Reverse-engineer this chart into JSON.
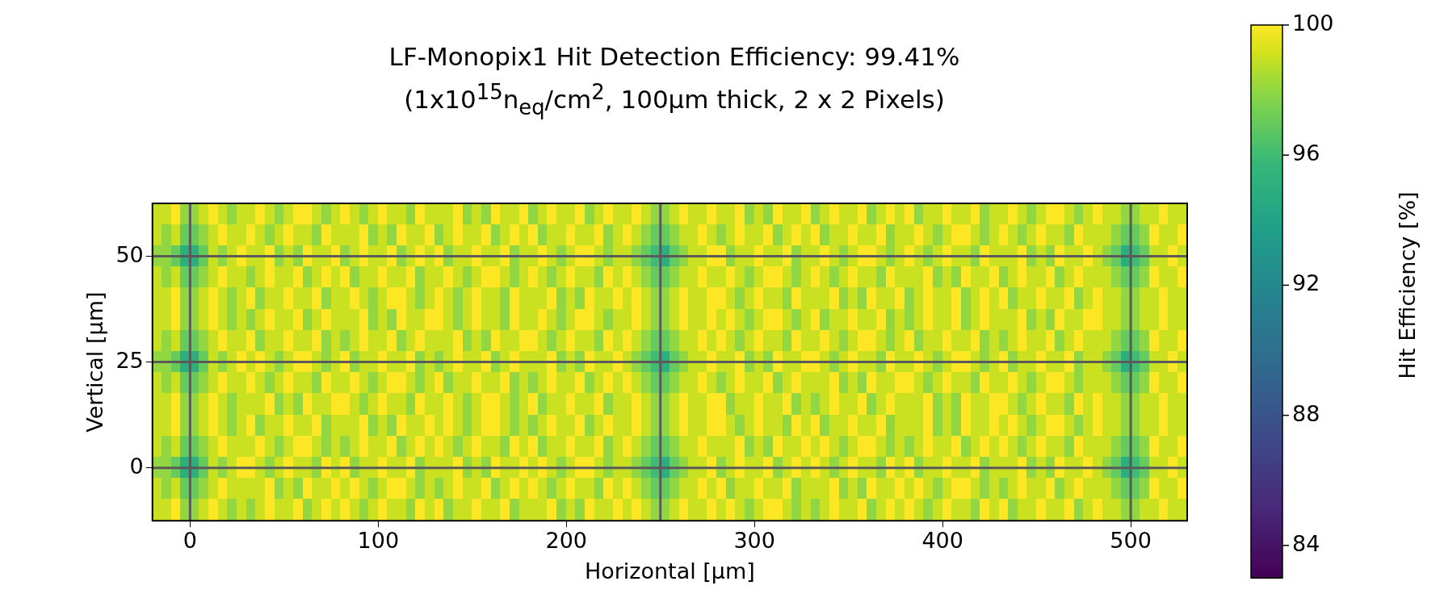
{
  "chart_data": {
    "type": "heatmap",
    "title": "LF-Monopix1 Hit Detection Efficiency: 99.41%",
    "subtitle": "(1x10$^{15}$n$_{eq}$/cm$^{2}$, 100μm thick, 2 x 2 Pixels)",
    "xlabel": "Horizontal [μm]",
    "ylabel": "Vertical [μm]",
    "clabel": "Hit Efficiency [%]",
    "xlim": [
      -20,
      530
    ],
    "xticks": [
      0,
      100,
      200,
      300,
      400,
      500
    ],
    "ylim": [
      -12.5,
      62.5
    ],
    "yticks": [
      0,
      25,
      50
    ],
    "clim": [
      83,
      100
    ],
    "cticks": [
      84,
      88,
      92,
      96,
      100
    ],
    "ref_lines": [
      {
        "axis": "x",
        "value": 0,
        "color": "#5a5a5a"
      },
      {
        "axis": "x",
        "value": 250,
        "color": "#5a5a5a"
      },
      {
        "axis": "x",
        "value": 500,
        "color": "#5a5a5a"
      },
      {
        "axis": "y",
        "value": 0,
        "color": "#5a5a5a"
      },
      {
        "axis": "y",
        "value": 25,
        "color": "#5a5a5a"
      },
      {
        "axis": "y",
        "value": 50,
        "color": "#5a5a5a"
      }
    ],
    "x": [
      -17.5,
      -12.5,
      -7.5,
      -2.5,
      2.5,
      7.5,
      12.5,
      17.5,
      22.5,
      27.5,
      32.5,
      37.5,
      42.5,
      47.5,
      52.5,
      57.5,
      62.5,
      67.5,
      72.5,
      77.5,
      82.5,
      87.5,
      92.5,
      97.5,
      102.5,
      107.5,
      112.5,
      117.5,
      122.5,
      127.5,
      132.5,
      137.5,
      142.5,
      147.5,
      152.5,
      157.5,
      162.5,
      167.5,
      172.5,
      177.5,
      182.5,
      187.5,
      192.5,
      197.5,
      202.5,
      207.5,
      212.5,
      217.5,
      222.5,
      227.5,
      232.5,
      237.5,
      242.5,
      247.5,
      252.5,
      257.5,
      262.5,
      267.5,
      272.5,
      277.5,
      282.5,
      287.5,
      292.5,
      297.5,
      302.5,
      307.5,
      312.5,
      317.5,
      322.5,
      327.5,
      332.5,
      337.5,
      342.5,
      347.5,
      352.5,
      357.5,
      362.5,
      367.5,
      372.5,
      377.5,
      382.5,
      387.5,
      392.5,
      397.5,
      402.5,
      407.5,
      412.5,
      417.5,
      422.5,
      427.5,
      432.5,
      437.5,
      442.5,
      447.5,
      452.5,
      457.5,
      462.5,
      467.5,
      472.5,
      477.5,
      482.5,
      487.5,
      492.5,
      497.5,
      502.5,
      507.5,
      512.5,
      517.5,
      522.5,
      527.5
    ],
    "y": [
      60,
      55,
      50,
      45,
      40,
      35,
      30,
      25,
      20,
      15,
      10,
      5,
      0,
      -5,
      -10
    ],
    "cells": [
      [
        99,
        99,
        100,
        98,
        98,
        99,
        100,
        99,
        98,
        99,
        99,
        100,
        99,
        98,
        99,
        100,
        100,
        99,
        98,
        99,
        100,
        99,
        98,
        99,
        100,
        99,
        99,
        98,
        100,
        99,
        99,
        99,
        100,
        98,
        99,
        98,
        100,
        99,
        99,
        100,
        98,
        99,
        100,
        99,
        99,
        100,
        98,
        99,
        100,
        99,
        99,
        100,
        99,
        98,
        98,
        99,
        100,
        99,
        99,
        100,
        99,
        99,
        100,
        98,
        99,
        98,
        100,
        99,
        99,
        100,
        98,
        99,
        100,
        99,
        99,
        100,
        98,
        99,
        100,
        99,
        100,
        98,
        99,
        99,
        100,
        99,
        99,
        100,
        98,
        99,
        99,
        100,
        99,
        98,
        99,
        100,
        100,
        99,
        98,
        99,
        100,
        99,
        99,
        98,
        98,
        99,
        99,
        100,
        99,
        99
      ],
      [
        99,
        98,
        99,
        97,
        97,
        98,
        99,
        100,
        99,
        99,
        100,
        99,
        98,
        99,
        100,
        99,
        99,
        98,
        100,
        99,
        99,
        99,
        100,
        98,
        99,
        98,
        100,
        99,
        99,
        100,
        98,
        99,
        100,
        99,
        99,
        100,
        98,
        99,
        100,
        99,
        100,
        98,
        99,
        99,
        100,
        99,
        99,
        100,
        98,
        99,
        100,
        99,
        98,
        97,
        97,
        98,
        99,
        99,
        100,
        99,
        98,
        99,
        100,
        99,
        99,
        100,
        98,
        99,
        100,
        99,
        100,
        98,
        99,
        99,
        100,
        99,
        99,
        100,
        98,
        99,
        99,
        100,
        99,
        98,
        99,
        100,
        100,
        99,
        98,
        99,
        100,
        99,
        98,
        99,
        100,
        99,
        99,
        98,
        100,
        99,
        99,
        99,
        98,
        97,
        97,
        98,
        100,
        99,
        99,
        100
      ],
      [
        98,
        98,
        97,
        95,
        95,
        97,
        99,
        98,
        99,
        100,
        99,
        99,
        100,
        98,
        99,
        98,
        100,
        99,
        99,
        100,
        98,
        99,
        100,
        99,
        99,
        100,
        98,
        99,
        100,
        99,
        100,
        98,
        99,
        99,
        100,
        99,
        99,
        100,
        98,
        99,
        99,
        100,
        99,
        98,
        99,
        100,
        100,
        99,
        98,
        99,
        99,
        98,
        97,
        96,
        95,
        97,
        98,
        99,
        99,
        100,
        100,
        98,
        99,
        99,
        100,
        99,
        99,
        100,
        98,
        99,
        99,
        100,
        99,
        98,
        99,
        100,
        100,
        99,
        98,
        99,
        100,
        99,
        98,
        99,
        100,
        99,
        99,
        98,
        100,
        99,
        99,
        99,
        100,
        98,
        99,
        98,
        100,
        99,
        99,
        100,
        99,
        98,
        97,
        95,
        96,
        97,
        99,
        99,
        100,
        99
      ],
      [
        99,
        98,
        99,
        97,
        97,
        98,
        99,
        100,
        99,
        99,
        98,
        99,
        100,
        99,
        99,
        100,
        98,
        99,
        100,
        99,
        100,
        98,
        99,
        99,
        100,
        99,
        99,
        100,
        98,
        99,
        99,
        100,
        99,
        98,
        99,
        100,
        100,
        99,
        98,
        99,
        100,
        99,
        98,
        99,
        100,
        99,
        99,
        98,
        100,
        99,
        100,
        99,
        98,
        97,
        97,
        98,
        99,
        99,
        100,
        99,
        99,
        100,
        99,
        98,
        99,
        100,
        100,
        99,
        98,
        99,
        100,
        99,
        98,
        99,
        100,
        99,
        99,
        98,
        100,
        99,
        99,
        99,
        100,
        98,
        99,
        98,
        100,
        99,
        99,
        100,
        98,
        99,
        100,
        99,
        99,
        100,
        98,
        99,
        100,
        99,
        99,
        99,
        98,
        97,
        97,
        98,
        100,
        99,
        99,
        100
      ],
      [
        99,
        99,
        100,
        98,
        98,
        99,
        100,
        99,
        98,
        99,
        100,
        98,
        99,
        99,
        100,
        99,
        99,
        100,
        98,
        99,
        99,
        100,
        99,
        98,
        99,
        100,
        100,
        99,
        98,
        99,
        100,
        99,
        98,
        99,
        100,
        99,
        99,
        98,
        100,
        99,
        99,
        99,
        100,
        98,
        99,
        98,
        100,
        99,
        99,
        100,
        99,
        100,
        99,
        98,
        98,
        99,
        100,
        99,
        99,
        100,
        100,
        99,
        98,
        99,
        100,
        99,
        99,
        98,
        100,
        99,
        99,
        99,
        100,
        98,
        99,
        98,
        100,
        99,
        99,
        100,
        98,
        99,
        100,
        99,
        99,
        100,
        98,
        99,
        100,
        99,
        100,
        98,
        99,
        99,
        100,
        99,
        99,
        100,
        98,
        99,
        100,
        99,
        99,
        98,
        98,
        99,
        99,
        100,
        99,
        99
      ],
      [
        99,
        99,
        100,
        98,
        98,
        99,
        100,
        99,
        98,
        99,
        98,
        99,
        100,
        99,
        99,
        100,
        98,
        99,
        100,
        99,
        99,
        99,
        100,
        98,
        99,
        98,
        100,
        99,
        99,
        100,
        100,
        99,
        98,
        99,
        100,
        99,
        99,
        98,
        100,
        99,
        99,
        100,
        99,
        98,
        99,
        100,
        100,
        99,
        98,
        99,
        99,
        100,
        99,
        98,
        98,
        99,
        100,
        99,
        99,
        100,
        99,
        100,
        99,
        98,
        99,
        100,
        100,
        99,
        98,
        99,
        100,
        98,
        99,
        99,
        100,
        99,
        99,
        100,
        98,
        99,
        98,
        99,
        100,
        99,
        99,
        100,
        98,
        99,
        100,
        99,
        99,
        99,
        100,
        98,
        99,
        98,
        100,
        99,
        99,
        100,
        100,
        99,
        99,
        98,
        98,
        99,
        99,
        100,
        99,
        99
      ],
      [
        99,
        98,
        99,
        97,
        97,
        98,
        99,
        100,
        99,
        99,
        100,
        98,
        99,
        99,
        100,
        99,
        99,
        100,
        98,
        99,
        98,
        99,
        100,
        99,
        99,
        100,
        98,
        99,
        100,
        99,
        99,
        99,
        100,
        98,
        99,
        98,
        100,
        99,
        99,
        100,
        100,
        99,
        98,
        99,
        100,
        99,
        99,
        98,
        100,
        99,
        100,
        99,
        98,
        97,
        97,
        98,
        99,
        99,
        100,
        99,
        100,
        99,
        98,
        99,
        100,
        99,
        99,
        98,
        100,
        99,
        99,
        100,
        99,
        98,
        99,
        100,
        100,
        99,
        98,
        99,
        100,
        98,
        99,
        99,
        100,
        99,
        99,
        100,
        98,
        99,
        98,
        99,
        100,
        99,
        99,
        100,
        98,
        99,
        100,
        99,
        99,
        99,
        98,
        97,
        97,
        98,
        100,
        99,
        99,
        100
      ],
      [
        98,
        98,
        97,
        95,
        95,
        97,
        99,
        98,
        99,
        100,
        99,
        100,
        99,
        98,
        99,
        100,
        100,
        99,
        98,
        99,
        100,
        98,
        99,
        99,
        100,
        99,
        99,
        100,
        98,
        99,
        98,
        99,
        100,
        99,
        99,
        100,
        98,
        99,
        100,
        99,
        99,
        99,
        100,
        98,
        99,
        98,
        100,
        99,
        99,
        100,
        99,
        98,
        97,
        96,
        95,
        97,
        98,
        99,
        99,
        100,
        99,
        99,
        100,
        98,
        99,
        98,
        100,
        99,
        99,
        100,
        100,
        99,
        98,
        99,
        100,
        99,
        99,
        98,
        100,
        99,
        99,
        100,
        99,
        98,
        99,
        100,
        100,
        99,
        98,
        99,
        100,
        98,
        99,
        99,
        100,
        99,
        99,
        100,
        98,
        99,
        99,
        98,
        97,
        95,
        96,
        97,
        99,
        99,
        100,
        99
      ],
      [
        99,
        98,
        99,
        97,
        97,
        98,
        99,
        100,
        99,
        99,
        100,
        99,
        98,
        99,
        100,
        99,
        99,
        98,
        100,
        99,
        99,
        100,
        99,
        98,
        99,
        100,
        100,
        99,
        98,
        99,
        100,
        98,
        99,
        99,
        100,
        99,
        99,
        100,
        98,
        99,
        98,
        99,
        100,
        99,
        99,
        100,
        98,
        99,
        100,
        99,
        100,
        99,
        98,
        97,
        97,
        98,
        99,
        99,
        100,
        99,
        98,
        99,
        100,
        99,
        99,
        100,
        98,
        99,
        100,
        99,
        99,
        99,
        100,
        98,
        99,
        98,
        100,
        99,
        99,
        100,
        100,
        99,
        98,
        99,
        100,
        99,
        99,
        98,
        100,
        99,
        99,
        100,
        99,
        98,
        99,
        100,
        100,
        99,
        98,
        99,
        99,
        99,
        98,
        97,
        97,
        98,
        100,
        99,
        99,
        100
      ],
      [
        99,
        99,
        100,
        98,
        98,
        99,
        100,
        99,
        98,
        99,
        99,
        99,
        100,
        98,
        99,
        98,
        100,
        99,
        99,
        100,
        100,
        99,
        98,
        99,
        100,
        99,
        99,
        98,
        100,
        99,
        99,
        100,
        99,
        98,
        99,
        100,
        100,
        99,
        98,
        99,
        100,
        98,
        99,
        99,
        100,
        99,
        99,
        100,
        98,
        99,
        99,
        100,
        99,
        98,
        98,
        99,
        100,
        99,
        99,
        100,
        100,
        98,
        99,
        99,
        100,
        99,
        99,
        100,
        98,
        99,
        98,
        99,
        100,
        99,
        99,
        100,
        98,
        99,
        100,
        99,
        99,
        99,
        100,
        98,
        99,
        98,
        100,
        99,
        99,
        100,
        100,
        99,
        98,
        99,
        100,
        99,
        99,
        98,
        100,
        99,
        100,
        99,
        99,
        98,
        98,
        99,
        99,
        100,
        99,
        99
      ],
      [
        99,
        99,
        100,
        98,
        98,
        99,
        100,
        99,
        98,
        99,
        100,
        98,
        99,
        99,
        100,
        99,
        99,
        100,
        98,
        99,
        99,
        99,
        100,
        98,
        99,
        98,
        100,
        99,
        99,
        100,
        99,
        100,
        99,
        98,
        99,
        100,
        100,
        99,
        98,
        99,
        98,
        99,
        100,
        99,
        99,
        100,
        98,
        99,
        100,
        99,
        99,
        100,
        99,
        98,
        98,
        99,
        100,
        99,
        99,
        100,
        100,
        99,
        98,
        99,
        100,
        99,
        99,
        98,
        100,
        99,
        100,
        98,
        99,
        99,
        100,
        99,
        99,
        100,
        98,
        99,
        99,
        99,
        100,
        98,
        99,
        98,
        100,
        99,
        99,
        100,
        99,
        100,
        99,
        98,
        99,
        100,
        100,
        99,
        98,
        99,
        100,
        99,
        99,
        98,
        98,
        99,
        99,
        100,
        99,
        99
      ],
      [
        99,
        98,
        99,
        97,
        97,
        98,
        99,
        100,
        99,
        99,
        99,
        100,
        99,
        98,
        99,
        100,
        100,
        99,
        98,
        99,
        98,
        99,
        100,
        99,
        99,
        100,
        98,
        99,
        100,
        99,
        100,
        99,
        98,
        99,
        100,
        99,
        99,
        98,
        100,
        99,
        100,
        98,
        99,
        99,
        100,
        99,
        99,
        100,
        98,
        99,
        100,
        99,
        98,
        97,
        97,
        98,
        99,
        99,
        100,
        99,
        99,
        99,
        100,
        98,
        99,
        98,
        100,
        99,
        99,
        100,
        99,
        100,
        99,
        98,
        99,
        100,
        100,
        99,
        98,
        99,
        98,
        99,
        100,
        99,
        99,
        100,
        98,
        99,
        100,
        99,
        100,
        99,
        98,
        99,
        100,
        99,
        99,
        98,
        100,
        99,
        99,
        99,
        98,
        97,
        97,
        98,
        100,
        99,
        99,
        100
      ],
      [
        98,
        98,
        97,
        95,
        95,
        97,
        99,
        98,
        99,
        100,
        100,
        99,
        98,
        99,
        100,
        99,
        99,
        98,
        100,
        99,
        100,
        98,
        99,
        99,
        100,
        99,
        99,
        100,
        98,
        99,
        99,
        99,
        100,
        98,
        99,
        98,
        100,
        99,
        99,
        100,
        99,
        100,
        99,
        98,
        99,
        100,
        100,
        99,
        98,
        99,
        99,
        98,
        97,
        96,
        95,
        97,
        98,
        99,
        99,
        100,
        98,
        99,
        100,
        99,
        99,
        100,
        98,
        99,
        100,
        99,
        100,
        99,
        98,
        99,
        100,
        99,
        99,
        98,
        100,
        99,
        100,
        98,
        99,
        99,
        100,
        99,
        99,
        100,
        98,
        99,
        99,
        99,
        100,
        98,
        99,
        98,
        100,
        99,
        99,
        100,
        99,
        98,
        97,
        95,
        96,
        97,
        99,
        99,
        100,
        99
      ],
      [
        99,
        98,
        99,
        97,
        97,
        98,
        99,
        100,
        99,
        99,
        99,
        99,
        100,
        98,
        99,
        98,
        100,
        99,
        99,
        100,
        99,
        100,
        99,
        98,
        99,
        100,
        100,
        99,
        98,
        99,
        98,
        99,
        100,
        99,
        99,
        100,
        98,
        99,
        100,
        99,
        100,
        99,
        98,
        99,
        100,
        99,
        99,
        98,
        100,
        99,
        100,
        99,
        98,
        97,
        97,
        98,
        99,
        99,
        100,
        99,
        100,
        98,
        99,
        99,
        100,
        99,
        99,
        100,
        98,
        99,
        99,
        99,
        100,
        98,
        99,
        98,
        100,
        99,
        99,
        100,
        99,
        100,
        99,
        98,
        99,
        100,
        100,
        99,
        98,
        99,
        98,
        99,
        100,
        99,
        99,
        100,
        98,
        99,
        100,
        99,
        99,
        99,
        98,
        97,
        97,
        98,
        100,
        99,
        99,
        100
      ],
      [
        99,
        99,
        100,
        98,
        98,
        99,
        100,
        99,
        98,
        99,
        98,
        99,
        100,
        99,
        99,
        100,
        98,
        99,
        100,
        99,
        100,
        99,
        98,
        99,
        100,
        99,
        99,
        98,
        100,
        99,
        100,
        98,
        99,
        99,
        100,
        99,
        99,
        100,
        98,
        99,
        99,
        99,
        100,
        98,
        99,
        98,
        100,
        99,
        99,
        100,
        99,
        100,
        99,
        98,
        98,
        99,
        100,
        99,
        99,
        100,
        99,
        100,
        99,
        98,
        99,
        100,
        100,
        99,
        98,
        99,
        98,
        99,
        100,
        99,
        99,
        100,
        98,
        99,
        100,
        99,
        100,
        99,
        98,
        99,
        100,
        99,
        99,
        98,
        100,
        99,
        100,
        98,
        99,
        99,
        100,
        99,
        99,
        100,
        98,
        99,
        100,
        99,
        99,
        98,
        98,
        99,
        99,
        100,
        99,
        99
      ]
    ]
  }
}
